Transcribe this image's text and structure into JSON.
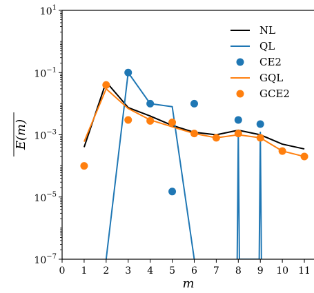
{
  "chart_data": {
    "type": "line",
    "title": "",
    "xlabel": "m",
    "ylabel": "E(m)",
    "yscale": "log",
    "xlim": [
      0,
      11.5
    ],
    "ylim": [
      1e-07,
      10
    ],
    "xticks": [
      0,
      1,
      2,
      3,
      4,
      5,
      6,
      7,
      8,
      9,
      10,
      11
    ],
    "yticks": [
      {
        "value": 1e-07,
        "label": "10−7",
        "base": "10",
        "exp": "−7"
      },
      {
        "value": 1e-05,
        "label": "10−5",
        "base": "10",
        "exp": "−5"
      },
      {
        "value": 0.001,
        "label": "10−3",
        "base": "10",
        "exp": "−3"
      },
      {
        "value": 0.1,
        "label": "10−1",
        "base": "10",
        "exp": "−1"
      },
      {
        "value": 10,
        "label": "101",
        "base": "10",
        "exp": "1"
      }
    ],
    "grid": false,
    "legend_position": "top-right",
    "series": [
      {
        "name": "NL",
        "kind": "line",
        "color": "#000000",
        "x": [
          1,
          2,
          3,
          4,
          5,
          6,
          7,
          8,
          9,
          10,
          11
        ],
        "y": [
          0.0004,
          0.05,
          0.0075,
          0.004,
          0.002,
          0.0012,
          0.001,
          0.0014,
          0.001,
          0.0005,
          0.00035
        ]
      },
      {
        "name": "QL",
        "kind": "line",
        "color": "#1f77b4",
        "x": [
          2,
          3,
          4,
          5,
          6,
          7,
          7.95,
          8,
          8.05,
          8.95,
          9,
          9.05
        ],
        "y": [
          1e-07,
          0.1,
          0.01,
          0.008,
          1e-07,
          null,
          1e-07,
          0.0012,
          1e-07,
          1e-07,
          0.0012,
          1e-07
        ]
      },
      {
        "name": "CE2",
        "kind": "scatter",
        "color": "#1f77b4",
        "x": [
          3,
          4,
          5,
          6,
          8,
          9
        ],
        "y": [
          0.1,
          0.01,
          1.5e-05,
          0.01,
          0.003,
          0.0022
        ]
      },
      {
        "name": "GQL",
        "kind": "line",
        "color": "#ff7f0e",
        "x": [
          1,
          2,
          3,
          4,
          5,
          6,
          7,
          8,
          9,
          10,
          11
        ],
        "y": [
          0.0006,
          0.03,
          0.007,
          0.003,
          0.0018,
          0.0011,
          0.0008,
          0.001,
          0.0008,
          0.0003,
          0.0002
        ]
      },
      {
        "name": "GCE2",
        "kind": "scatter",
        "color": "#ff7f0e",
        "x": [
          1,
          2,
          3,
          4,
          5,
          6,
          7,
          8,
          9,
          10,
          11
        ],
        "y": [
          0.0001,
          0.04,
          0.003,
          0.0028,
          0.0025,
          0.0011,
          0.0008,
          0.0011,
          0.0008,
          0.0003,
          0.0002
        ]
      }
    ]
  }
}
